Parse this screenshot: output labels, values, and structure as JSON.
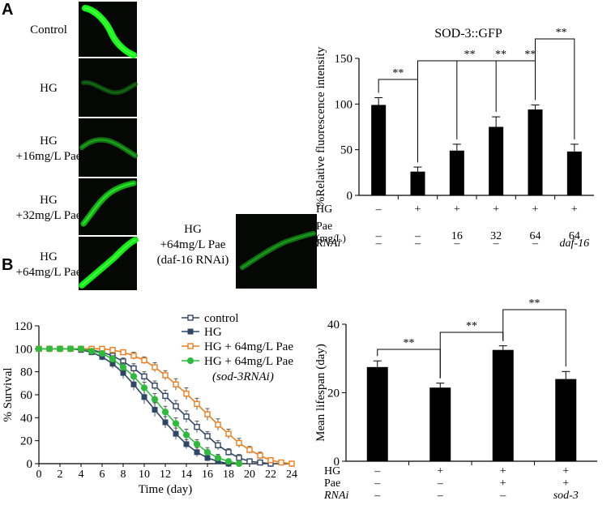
{
  "panel_a": {
    "letter": "A",
    "images": [
      {
        "label_lines": [
          "Control"
        ],
        "intensity": 1.0
      },
      {
        "label_lines": [
          "HG"
        ],
        "intensity": 0.27
      },
      {
        "label_lines": [
          "HG",
          "+16mg/L Pae"
        ],
        "intensity": 0.5
      },
      {
        "label_lines": [
          "HG",
          "+32mg/L Pae"
        ],
        "intensity": 0.75
      },
      {
        "label_lines": [
          "HG",
          "+64mg/L Pae"
        ],
        "intensity": 0.95
      },
      {
        "label_lines": [
          "HG",
          "+64mg/L Pae",
          "(daf-16 RNAi)"
        ],
        "intensity": 0.48
      }
    ]
  },
  "panel_b": {
    "letter": "B"
  },
  "chart_data": [
    {
      "id": "sod3-bar",
      "type": "bar",
      "title": "SOD-3::GFP",
      "ylabel": "%Relative fluorescence intensity",
      "ylim": [
        0,
        150
      ],
      "yticks": [
        0,
        50,
        100,
        150
      ],
      "values": [
        99,
        26,
        49,
        75,
        94,
        48
      ],
      "errors": [
        8,
        5,
        7,
        11,
        5,
        8
      ],
      "condition_rows": [
        {
          "label": "HG",
          "values": [
            "–",
            "+",
            "+",
            "+",
            "+",
            "+"
          ]
        },
        {
          "label": "Pae",
          "sublabel": "(mg/L)",
          "values": [
            "–",
            "–",
            "16",
            "32",
            "64",
            "64"
          ]
        },
        {
          "label": "RNAi",
          "values": [
            "–",
            "–",
            "–",
            "–",
            "–",
            "daf-16"
          ]
        }
      ],
      "significance": [
        {
          "from": 0,
          "to": 1,
          "label": "**"
        },
        {
          "from": 1,
          "to": 2,
          "label": "**"
        },
        {
          "from": 1,
          "to": 3,
          "label": "**"
        },
        {
          "from": 1,
          "to": 4,
          "label": "**"
        },
        {
          "from": 4,
          "to": 5,
          "label": "**"
        }
      ]
    },
    {
      "id": "survival-line",
      "type": "line",
      "xlabel": "Time (day)",
      "ylabel": "% Survival",
      "xlim": [
        0,
        24
      ],
      "ylim": [
        0,
        120
      ],
      "xticks": [
        0,
        2,
        4,
        6,
        8,
        10,
        12,
        14,
        16,
        18,
        20,
        22,
        24
      ],
      "yticks": [
        0,
        20,
        40,
        60,
        80,
        100,
        120
      ],
      "x": [
        0,
        1,
        2,
        3,
        4,
        5,
        6,
        7,
        8,
        9,
        10,
        11,
        12,
        13,
        14,
        15,
        16,
        17,
        18,
        19,
        20,
        21,
        22,
        23,
        24
      ],
      "series": [
        {
          "name": "control",
          "color": "#2f4766",
          "marker": "open-square",
          "values": [
            100,
            100,
            100,
            100,
            100,
            99,
            97,
            94,
            89,
            83,
            76,
            68,
            59,
            50,
            41,
            32,
            24,
            16,
            10,
            5,
            2,
            1,
            0,
            null,
            null
          ],
          "errors": [
            0,
            0,
            0,
            0,
            0,
            1,
            2,
            3,
            3,
            4,
            4,
            4,
            5,
            5,
            5,
            5,
            4,
            4,
            3,
            3,
            2,
            1,
            0,
            null,
            null
          ]
        },
        {
          "name": "HG",
          "color": "#2f4766",
          "marker": "filled-square",
          "values": [
            100,
            100,
            100,
            100,
            99,
            97,
            93,
            87,
            79,
            69,
            58,
            47,
            36,
            26,
            17,
            10,
            5,
            2,
            0,
            null,
            null,
            null,
            null,
            null,
            null
          ],
          "errors": [
            0,
            0,
            0,
            0,
            1,
            2,
            3,
            4,
            5,
            5,
            6,
            6,
            5,
            5,
            4,
            4,
            3,
            2,
            0,
            null,
            null,
            null,
            null,
            null,
            null
          ]
        },
        {
          "name": "HG + 64mg/L Pae",
          "color": "#f07d1a",
          "marker": "open-square",
          "values": [
            100,
            100,
            100,
            100,
            100,
            100,
            100,
            99,
            97,
            94,
            90,
            84,
            77,
            69,
            61,
            52,
            43,
            34,
            26,
            18,
            12,
            7,
            3,
            1,
            0
          ],
          "errors": [
            0,
            0,
            0,
            0,
            0,
            0,
            0,
            1,
            2,
            3,
            3,
            4,
            4,
            5,
            5,
            5,
            5,
            5,
            4,
            4,
            3,
            3,
            2,
            1,
            0
          ]
        },
        {
          "name": "HG + 64mg/L Pae",
          "name_line2": "(sod-3RNAi)",
          "color": "#2dbb3b",
          "marker": "filled-circle",
          "values": [
            100,
            100,
            100,
            100,
            100,
            98,
            96,
            91,
            84,
            76,
            66,
            56,
            45,
            35,
            25,
            17,
            10,
            5,
            2,
            0,
            null,
            null,
            null,
            null,
            null
          ],
          "errors": [
            0,
            0,
            0,
            0,
            0,
            1,
            2,
            3,
            4,
            5,
            5,
            5,
            5,
            5,
            5,
            4,
            4,
            3,
            2,
            0,
            null,
            null,
            null,
            null,
            null
          ]
        }
      ]
    },
    {
      "id": "lifespan-bar",
      "type": "bar",
      "title": "",
      "ylabel": "Mean lifespan (day)",
      "ylim": [
        0,
        40
      ],
      "yticks": [
        0,
        20,
        40
      ],
      "values": [
        27.5,
        21.5,
        32.5,
        24
      ],
      "errors": [
        1.8,
        1.3,
        1.2,
        2.2
      ],
      "condition_rows": [
        {
          "label": "HG",
          "values": [
            "–",
            "+",
            "+",
            "+"
          ]
        },
        {
          "label": "Pae",
          "values": [
            "–",
            "–",
            "+",
            "+"
          ]
        },
        {
          "label": "RNAi",
          "values": [
            "–",
            "–",
            "–",
            "sod-3"
          ]
        }
      ],
      "significance": [
        {
          "from": 0,
          "to": 1,
          "label": "**"
        },
        {
          "from": 1,
          "to": 2,
          "label": "**"
        },
        {
          "from": 2,
          "to": 3,
          "label": "**"
        }
      ]
    }
  ]
}
